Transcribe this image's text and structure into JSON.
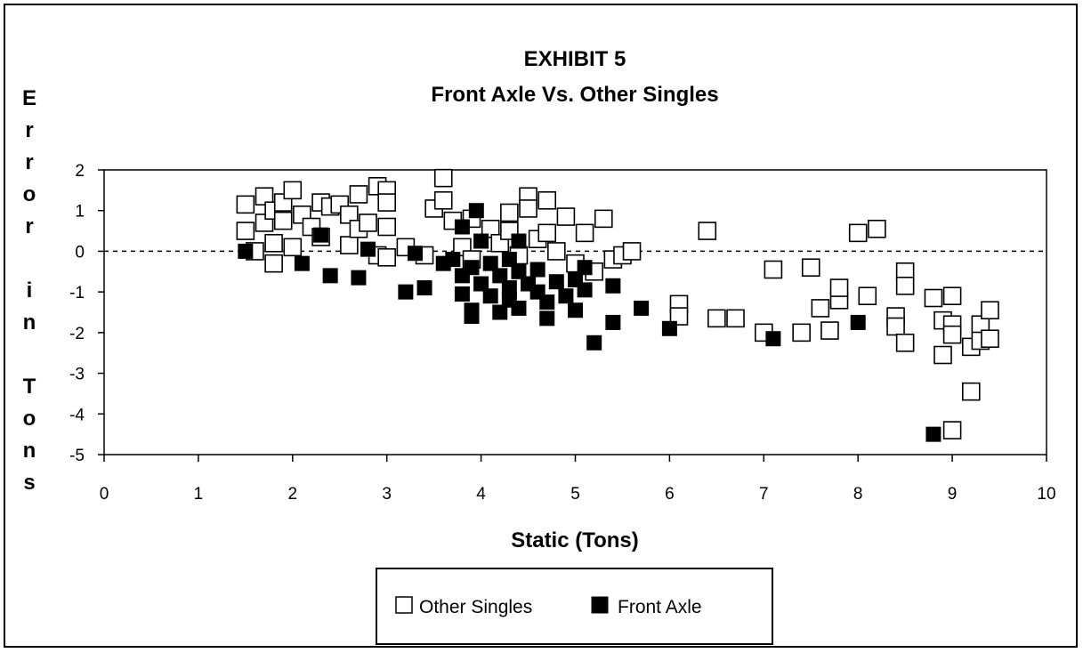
{
  "chart_data": {
    "type": "scatter",
    "title": "EXHIBIT 5",
    "subtitle": "Front Axle Vs. Other Singles",
    "xlabel": "Static (Tons)",
    "ylabel": "Error in Tons",
    "xlim": [
      0,
      10
    ],
    "ylim": [
      -5,
      2
    ],
    "x_ticks": [
      "0",
      "1",
      "2",
      "3",
      "4",
      "5",
      "6",
      "7",
      "8",
      "9",
      "10"
    ],
    "y_ticks": [
      "2",
      "1",
      "0",
      "-1",
      "-2",
      "-3",
      "-4",
      "-5"
    ],
    "grid": false,
    "reference_line": 0,
    "legend": {
      "position": "bottom",
      "entries": [
        "Other Singles",
        "Front Axle"
      ]
    },
    "series": [
      {
        "name": "Other Singles",
        "marker": "open-square",
        "points": [
          [
            1.5,
            1.15
          ],
          [
            1.5,
            0.5
          ],
          [
            1.6,
            0.0
          ],
          [
            1.7,
            1.35
          ],
          [
            1.7,
            0.7
          ],
          [
            1.8,
            1.0
          ],
          [
            1.8,
            0.2
          ],
          [
            1.8,
            -0.3
          ],
          [
            1.9,
            1.2
          ],
          [
            1.9,
            0.75
          ],
          [
            2.0,
            0.1
          ],
          [
            2.0,
            1.5
          ],
          [
            2.1,
            0.9
          ],
          [
            2.2,
            0.6
          ],
          [
            2.3,
            1.2
          ],
          [
            2.3,
            0.35
          ],
          [
            2.4,
            1.1
          ],
          [
            2.5,
            1.15
          ],
          [
            2.6,
            0.9
          ],
          [
            2.6,
            0.15
          ],
          [
            2.7,
            1.4
          ],
          [
            2.7,
            0.55
          ],
          [
            2.8,
            0.7
          ],
          [
            2.9,
            1.6
          ],
          [
            2.9,
            -0.1
          ],
          [
            3.0,
            1.5
          ],
          [
            3.0,
            1.2
          ],
          [
            3.0,
            0.6
          ],
          [
            3.0,
            -0.15
          ],
          [
            3.2,
            0.1
          ],
          [
            3.4,
            -0.1
          ],
          [
            3.5,
            1.05
          ],
          [
            3.6,
            1.8
          ],
          [
            3.6,
            1.25
          ],
          [
            3.7,
            0.75
          ],
          [
            3.8,
            0.1
          ],
          [
            3.9,
            0.8
          ],
          [
            3.9,
            -0.2
          ],
          [
            4.1,
            0.55
          ],
          [
            4.2,
            0.2
          ],
          [
            4.3,
            0.95
          ],
          [
            4.3,
            0.5
          ],
          [
            4.4,
            -0.1
          ],
          [
            4.5,
            1.35
          ],
          [
            4.5,
            1.05
          ],
          [
            4.6,
            0.3
          ],
          [
            4.7,
            1.25
          ],
          [
            4.7,
            0.45
          ],
          [
            4.8,
            0.0
          ],
          [
            4.9,
            0.85
          ],
          [
            5.0,
            -0.3
          ],
          [
            5.1,
            0.45
          ],
          [
            5.2,
            -0.5
          ],
          [
            5.3,
            0.8
          ],
          [
            5.4,
            -0.2
          ],
          [
            5.5,
            -0.1
          ],
          [
            5.6,
            0.0
          ],
          [
            6.1,
            -1.3
          ],
          [
            6.1,
            -1.6
          ],
          [
            6.4,
            0.5
          ],
          [
            6.5,
            -1.65
          ],
          [
            6.7,
            -1.65
          ],
          [
            7.0,
            -2.0
          ],
          [
            7.1,
            -0.45
          ],
          [
            7.4,
            -2.0
          ],
          [
            7.5,
            -0.4
          ],
          [
            7.6,
            -1.4
          ],
          [
            7.7,
            -1.95
          ],
          [
            7.8,
            -1.2
          ],
          [
            7.8,
            -0.9
          ],
          [
            8.0,
            0.45
          ],
          [
            8.1,
            -1.1
          ],
          [
            8.2,
            0.55
          ],
          [
            8.4,
            -1.6
          ],
          [
            8.4,
            -1.85
          ],
          [
            8.5,
            -0.5
          ],
          [
            8.5,
            -0.85
          ],
          [
            8.5,
            -2.25
          ],
          [
            8.8,
            -1.15
          ],
          [
            8.9,
            -2.55
          ],
          [
            8.9,
            -1.7
          ],
          [
            9.0,
            -1.1
          ],
          [
            9.0,
            -1.8
          ],
          [
            9.0,
            -2.05
          ],
          [
            9.0,
            -4.4
          ],
          [
            9.2,
            -2.35
          ],
          [
            9.2,
            -3.45
          ],
          [
            9.3,
            -1.8
          ],
          [
            9.3,
            -2.2
          ],
          [
            9.4,
            -2.15
          ],
          [
            9.4,
            -1.45
          ]
        ]
      },
      {
        "name": "Front Axle",
        "marker": "filled-square",
        "points": [
          [
            1.5,
            0.0
          ],
          [
            2.1,
            -0.3
          ],
          [
            2.3,
            0.4
          ],
          [
            2.4,
            -0.6
          ],
          [
            2.7,
            -0.65
          ],
          [
            2.8,
            0.05
          ],
          [
            3.2,
            -1.0
          ],
          [
            3.3,
            -0.05
          ],
          [
            3.4,
            -0.9
          ],
          [
            3.6,
            -0.3
          ],
          [
            3.7,
            -0.2
          ],
          [
            3.8,
            0.6
          ],
          [
            3.8,
            -0.6
          ],
          [
            3.8,
            -1.05
          ],
          [
            3.9,
            -0.4
          ],
          [
            3.9,
            -1.45
          ],
          [
            3.9,
            -1.6
          ],
          [
            3.95,
            1.0
          ],
          [
            4.0,
            0.25
          ],
          [
            4.0,
            -0.8
          ],
          [
            4.1,
            -0.3
          ],
          [
            4.1,
            -1.1
          ],
          [
            4.2,
            -0.6
          ],
          [
            4.2,
            -1.5
          ],
          [
            4.3,
            -0.2
          ],
          [
            4.3,
            -0.9
          ],
          [
            4.3,
            -1.2
          ],
          [
            4.4,
            0.25
          ],
          [
            4.4,
            -0.5
          ],
          [
            4.4,
            -1.4
          ],
          [
            4.5,
            -0.8
          ],
          [
            4.6,
            -1.0
          ],
          [
            4.6,
            -0.45
          ],
          [
            4.7,
            -1.25
          ],
          [
            4.7,
            -1.65
          ],
          [
            4.8,
            -0.75
          ],
          [
            4.9,
            -1.1
          ],
          [
            5.0,
            -0.7
          ],
          [
            5.0,
            -1.45
          ],
          [
            5.1,
            -0.4
          ],
          [
            5.1,
            -0.95
          ],
          [
            5.2,
            -2.25
          ],
          [
            5.4,
            -0.85
          ],
          [
            5.4,
            -1.75
          ],
          [
            5.7,
            -1.4
          ],
          [
            6.0,
            -1.9
          ],
          [
            7.1,
            -2.15
          ],
          [
            8.0,
            -1.75
          ],
          [
            8.8,
            -4.5
          ]
        ]
      }
    ]
  }
}
